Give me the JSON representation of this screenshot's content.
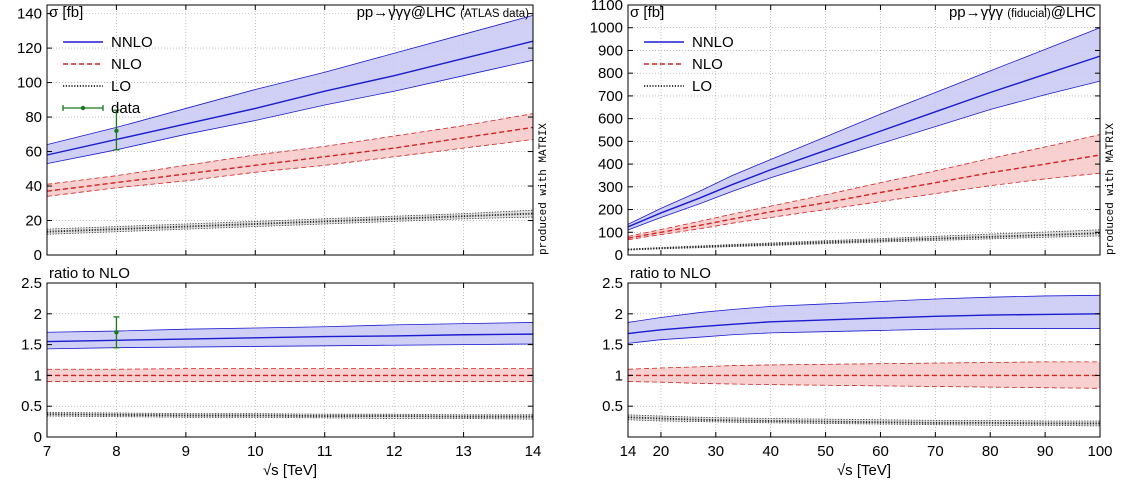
{
  "chart_data": [
    {
      "type": "line",
      "panel": "left-top",
      "ylabel": "σ [fb]",
      "title_main": "pp→γγγ@LHC",
      "title_sub": "(ATLAS data)",
      "annotation": "produced with MATRIX",
      "xlim": [
        7,
        14
      ],
      "ylim": [
        0,
        145
      ],
      "yticks": [
        0,
        20,
        40,
        60,
        80,
        100,
        120,
        140
      ],
      "xticks": [
        7,
        8,
        9,
        10,
        11,
        12,
        13,
        14
      ],
      "grid": true,
      "legend_position": "top-left",
      "x": [
        7,
        8,
        9,
        10,
        11,
        12,
        13,
        14
      ],
      "series": [
        {
          "name": "NNLO",
          "color": "#1b1bd0",
          "style": "solid",
          "fill": "#c8c8f5",
          "central": [
            58,
            67,
            76,
            85,
            95,
            104,
            114,
            124
          ],
          "lower": [
            53,
            61,
            70,
            78,
            87,
            95,
            104,
            113
          ],
          "upper": [
            64,
            74,
            85,
            96,
            106,
            117,
            128,
            139
          ]
        },
        {
          "name": "NLO",
          "color": "#d42020",
          "style": "dashed",
          "fill": "#f8c8c8",
          "central": [
            37,
            42,
            47,
            52,
            57,
            62,
            68,
            74
          ],
          "lower": [
            34,
            39,
            43,
            48,
            52,
            57,
            62,
            67
          ],
          "upper": [
            41,
            46,
            52,
            58,
            63,
            69,
            75,
            82
          ]
        },
        {
          "name": "LO",
          "color": "#222222",
          "style": "dotted",
          "fill": "#d8d8d8",
          "central": [
            13.5,
            15,
            16.5,
            18,
            19.5,
            21,
            22.5,
            24
          ],
          "lower": [
            12,
            13.5,
            15,
            16.5,
            18,
            19.5,
            21,
            22
          ],
          "upper": [
            15,
            16.5,
            18,
            19.5,
            21,
            22.5,
            24,
            26
          ]
        }
      ],
      "data_points": {
        "name": "data",
        "color": "#1a7a1a",
        "points": [
          {
            "x": 8,
            "y": 72,
            "err_low": 61,
            "err_high": 84
          }
        ]
      }
    },
    {
      "type": "line",
      "panel": "left-bottom",
      "ylabel": "ratio to NLO",
      "xlabel": "√s [TeV]",
      "xlim": [
        7,
        14
      ],
      "ylim": [
        0,
        2.5
      ],
      "yticks": [
        0,
        0.5,
        1,
        1.5,
        2,
        2.5
      ],
      "xticks": [
        7,
        8,
        9,
        10,
        11,
        12,
        13,
        14
      ],
      "grid": true,
      "x": [
        7,
        8,
        9,
        10,
        11,
        12,
        13,
        14
      ],
      "series": [
        {
          "name": "NNLO",
          "color": "#1b1bd0",
          "style": "solid",
          "fill": "#c8c8f5",
          "central": [
            1.55,
            1.57,
            1.59,
            1.61,
            1.63,
            1.64,
            1.66,
            1.67
          ],
          "lower": [
            1.43,
            1.45,
            1.46,
            1.47,
            1.48,
            1.49,
            1.5,
            1.51
          ],
          "upper": [
            1.7,
            1.72,
            1.75,
            1.77,
            1.79,
            1.82,
            1.84,
            1.86
          ]
        },
        {
          "name": "NLO",
          "color": "#d42020",
          "style": "dashed",
          "fill": "#f8c8c8",
          "central": [
            1,
            1,
            1,
            1,
            1,
            1,
            1,
            1
          ],
          "lower": [
            0.9,
            0.9,
            0.9,
            0.9,
            0.9,
            0.9,
            0.9,
            0.9
          ],
          "upper": [
            1.1,
            1.1,
            1.11,
            1.11,
            1.11,
            1.11,
            1.11,
            1.11
          ]
        },
        {
          "name": "LO",
          "color": "#222222",
          "style": "dotted",
          "fill": "#d8d8d8",
          "central": [
            0.37,
            0.36,
            0.35,
            0.35,
            0.34,
            0.34,
            0.33,
            0.33
          ],
          "lower": [
            0.34,
            0.33,
            0.32,
            0.32,
            0.31,
            0.3,
            0.3,
            0.29
          ],
          "upper": [
            0.4,
            0.39,
            0.38,
            0.38,
            0.37,
            0.37,
            0.36,
            0.36
          ]
        }
      ],
      "data_points": {
        "name": "data",
        "color": "#1a7a1a",
        "points": [
          {
            "x": 8,
            "y": 1.7,
            "err_low": 1.45,
            "err_high": 1.95
          }
        ]
      }
    },
    {
      "type": "line",
      "panel": "right-top",
      "ylabel": "σ [fb]",
      "title_main": "pp→γγγ",
      "title_sub": "(fiducial)",
      "title_end": "@LHC",
      "annotation": "produced with MATRIX",
      "xlim": [
        14,
        100
      ],
      "ylim": [
        0,
        1100
      ],
      "yticks": [
        0,
        100,
        200,
        300,
        400,
        500,
        600,
        700,
        800,
        900,
        1000,
        1100
      ],
      "xticks": [
        14,
        20,
        30,
        40,
        50,
        60,
        70,
        80,
        90,
        100
      ],
      "grid": true,
      "legend_position": "top-left",
      "x": [
        14,
        20,
        27,
        33,
        40,
        50,
        60,
        70,
        80,
        90,
        100
      ],
      "series": [
        {
          "name": "NNLO",
          "color": "#1b1bd0",
          "style": "solid",
          "fill": "#c8c8f5",
          "central": [
            124,
            185,
            250,
            310,
            375,
            460,
            545,
            630,
            715,
            795,
            875
          ],
          "lower": [
            110,
            165,
            225,
            280,
            340,
            415,
            490,
            565,
            640,
            705,
            765
          ],
          "upper": [
            135,
            205,
            280,
            350,
            420,
            520,
            620,
            715,
            810,
            905,
            1000
          ]
        },
        {
          "name": "NLO",
          "color": "#d42020",
          "style": "dashed",
          "fill": "#f8c8c8",
          "central": [
            74,
            100,
            130,
            158,
            190,
            230,
            275,
            318,
            362,
            400,
            440
          ],
          "lower": [
            67,
            90,
            115,
            140,
            165,
            200,
            235,
            270,
            305,
            335,
            360
          ],
          "upper": [
            82,
            112,
            148,
            180,
            215,
            265,
            318,
            370,
            425,
            475,
            530
          ]
        },
        {
          "name": "LO",
          "color": "#222222",
          "style": "dotted",
          "fill": "#d8d8d8",
          "central": [
            24,
            30,
            36,
            41,
            47,
            56,
            64,
            72,
            80,
            88,
            96
          ],
          "lower": [
            22,
            27,
            32,
            37,
            42,
            50,
            57,
            64,
            71,
            78,
            84
          ],
          "upper": [
            26,
            33,
            40,
            46,
            53,
            63,
            72,
            82,
            92,
            101,
            111
          ]
        }
      ]
    },
    {
      "type": "line",
      "panel": "right-bottom",
      "ylabel": "ratio to NLO",
      "xlabel": "√s [TeV]",
      "xlim": [
        14,
        100
      ],
      "ylim": [
        0,
        2.5
      ],
      "yticks": [
        0.5,
        1,
        1.5,
        2,
        2.5
      ],
      "xticks": [
        14,
        20,
        30,
        40,
        50,
        60,
        70,
        80,
        90,
        100
      ],
      "grid": true,
      "x": [
        14,
        20,
        27,
        33,
        40,
        50,
        60,
        70,
        80,
        90,
        100
      ],
      "series": [
        {
          "name": "NNLO",
          "color": "#1b1bd0",
          "style": "solid",
          "fill": "#c8c8f5",
          "central": [
            1.68,
            1.74,
            1.79,
            1.83,
            1.87,
            1.9,
            1.93,
            1.96,
            1.98,
            1.99,
            2.0
          ],
          "lower": [
            1.52,
            1.58,
            1.62,
            1.66,
            1.69,
            1.71,
            1.73,
            1.75,
            1.76,
            1.76,
            1.76
          ],
          "upper": [
            1.86,
            1.94,
            2.02,
            2.07,
            2.12,
            2.16,
            2.2,
            2.24,
            2.27,
            2.29,
            2.3
          ]
        },
        {
          "name": "NLO",
          "color": "#d42020",
          "style": "dashed",
          "fill": "#f8c8c8",
          "central": [
            1,
            1,
            1,
            1,
            1,
            1,
            1,
            1,
            1,
            1,
            1
          ],
          "lower": [
            0.9,
            0.89,
            0.87,
            0.86,
            0.85,
            0.84,
            0.83,
            0.82,
            0.81,
            0.8,
            0.79
          ],
          "upper": [
            1.1,
            1.12,
            1.14,
            1.16,
            1.17,
            1.18,
            1.19,
            1.2,
            1.21,
            1.22,
            1.22
          ]
        },
        {
          "name": "LO",
          "color": "#222222",
          "style": "dotted",
          "fill": "#d8d8d8",
          "central": [
            0.32,
            0.3,
            0.28,
            0.27,
            0.26,
            0.25,
            0.24,
            0.23,
            0.23,
            0.22,
            0.22
          ],
          "lower": [
            0.28,
            0.26,
            0.25,
            0.24,
            0.23,
            0.22,
            0.21,
            0.2,
            0.19,
            0.19,
            0.18
          ],
          "upper": [
            0.36,
            0.34,
            0.32,
            0.31,
            0.3,
            0.29,
            0.28,
            0.27,
            0.27,
            0.26,
            0.26
          ]
        }
      ]
    }
  ]
}
